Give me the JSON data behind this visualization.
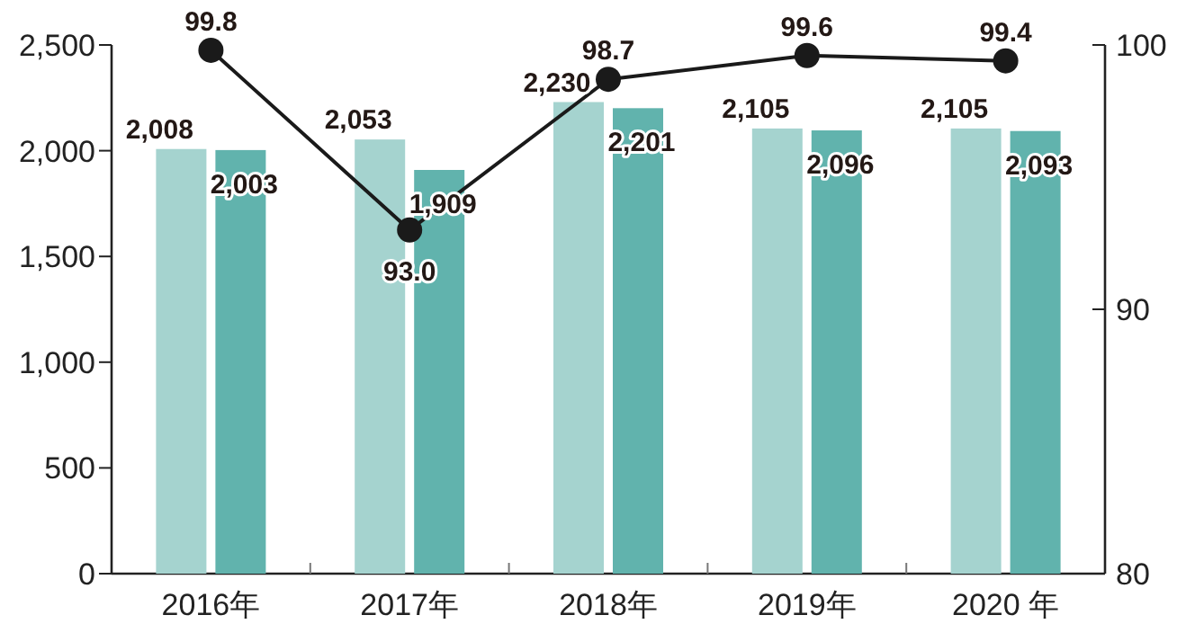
{
  "chart_data": {
    "type": "bar",
    "categories": [
      "2016年",
      "2017年",
      "2018年",
      "2019年",
      "2020 年"
    ],
    "series": [
      {
        "color": "#a5d3cf",
        "values": [
          2008,
          2053,
          2230,
          2105,
          2105
        ],
        "value_labels": [
          "2,008",
          "2,053",
          "2,230",
          "2,105",
          "2,105"
        ]
      },
      {
        "color": "#61b3ad",
        "values": [
          2003,
          1909,
          2201,
          2096,
          2093
        ],
        "value_labels": [
          "2,003",
          "1,909",
          "2,201",
          "2,096",
          "2,093"
        ]
      },
      {
        "type": "line",
        "axis": "y2",
        "color": "#1a1a1a",
        "marker": "circle",
        "values": [
          99.8,
          93.0,
          98.7,
          99.6,
          99.4
        ],
        "value_labels": [
          "99.8",
          "93.0",
          "98.7",
          "99.6",
          "99.4"
        ]
      }
    ],
    "ylim": [
      0,
      2500
    ],
    "yticks": [
      0,
      500,
      {
        "value": 1000,
        "label": "1,000"
      },
      {
        "value": 1500,
        "label": "1,500"
      },
      {
        "value": 2000,
        "label": "2,000"
      },
      {
        "value": 2500,
        "label": "2,500"
      }
    ],
    "y2lim": [
      80,
      100
    ],
    "y2ticks": [
      80,
      90,
      100
    ]
  }
}
